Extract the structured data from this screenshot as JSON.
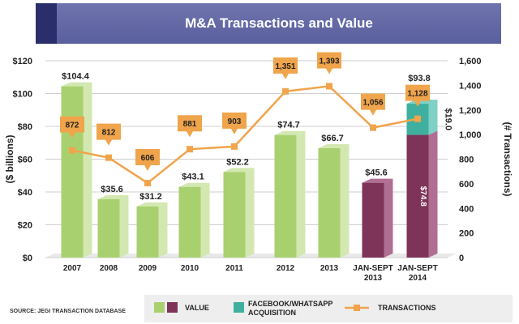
{
  "chart_data": {
    "type": "bar",
    "title": "M&A Transactions and Value",
    "ylabel": "($ billions)",
    "y2label": "(# Transactions)",
    "ylim": [
      0,
      120
    ],
    "y2lim": [
      0,
      1600
    ],
    "yticks": [
      "$0",
      "$20",
      "$40",
      "$60",
      "$80",
      "$100",
      "$120"
    ],
    "y2ticks": [
      "0",
      "200",
      "400",
      "600",
      "800",
      "1,000",
      "1,200",
      "1,400",
      "1,600"
    ],
    "categories": [
      "2007",
      "2008",
      "2009",
      "2010",
      "2011",
      "2012",
      "2013",
      "JAN-SEPT 2013",
      "JAN-SEPT 2014"
    ],
    "series": [
      {
        "name": "VALUE",
        "values": [
          104.4,
          35.6,
          31.2,
          43.1,
          52.2,
          74.7,
          66.7,
          45.6,
          74.8
        ],
        "labels": [
          "$104.4",
          "$35.6",
          "$31.2",
          "$43.1",
          "$52.2",
          "$74.7",
          "$66.7",
          "$45.6",
          "$74.8"
        ]
      },
      {
        "name": "FACEBOOK/WHATSAPP ACQUISITION",
        "values": [
          null,
          null,
          null,
          null,
          null,
          null,
          null,
          null,
          19.0
        ],
        "labels": [
          "",
          "",
          "",
          "",
          "",
          "",
          "",
          "",
          "$19.0"
        ]
      },
      {
        "name": "TRANSACTIONS",
        "axis": "secondary",
        "values": [
          872,
          812,
          606,
          881,
          903,
          1351,
          1393,
          1056,
          1128
        ],
        "labels": [
          "872",
          "812",
          "606",
          "881",
          "903",
          "1,351",
          "1,393",
          "1,056",
          "1,128"
        ]
      }
    ],
    "total_label_2014": "$93.8",
    "legend": [
      {
        "label": "VALUE",
        "kind": "bar-pair"
      },
      {
        "label": "FACEBOOK/WHATSAPP ACQUISITION",
        "kind": "bar"
      },
      {
        "label": "TRANSACTIONS",
        "kind": "line"
      }
    ],
    "source": "SOURCE: JEGI TRANSACTION DATABASE"
  },
  "colors": {
    "annual_front": "#a9d06f",
    "annual_side": "#d3e8b1",
    "ytd_front": "#7e3459",
    "ytd_side": "#b06e93",
    "facebook_front": "#3fb0a0",
    "facebook_side": "#7fd0c6",
    "line": "#f0a44b",
    "banner": "#5a5f9e"
  }
}
